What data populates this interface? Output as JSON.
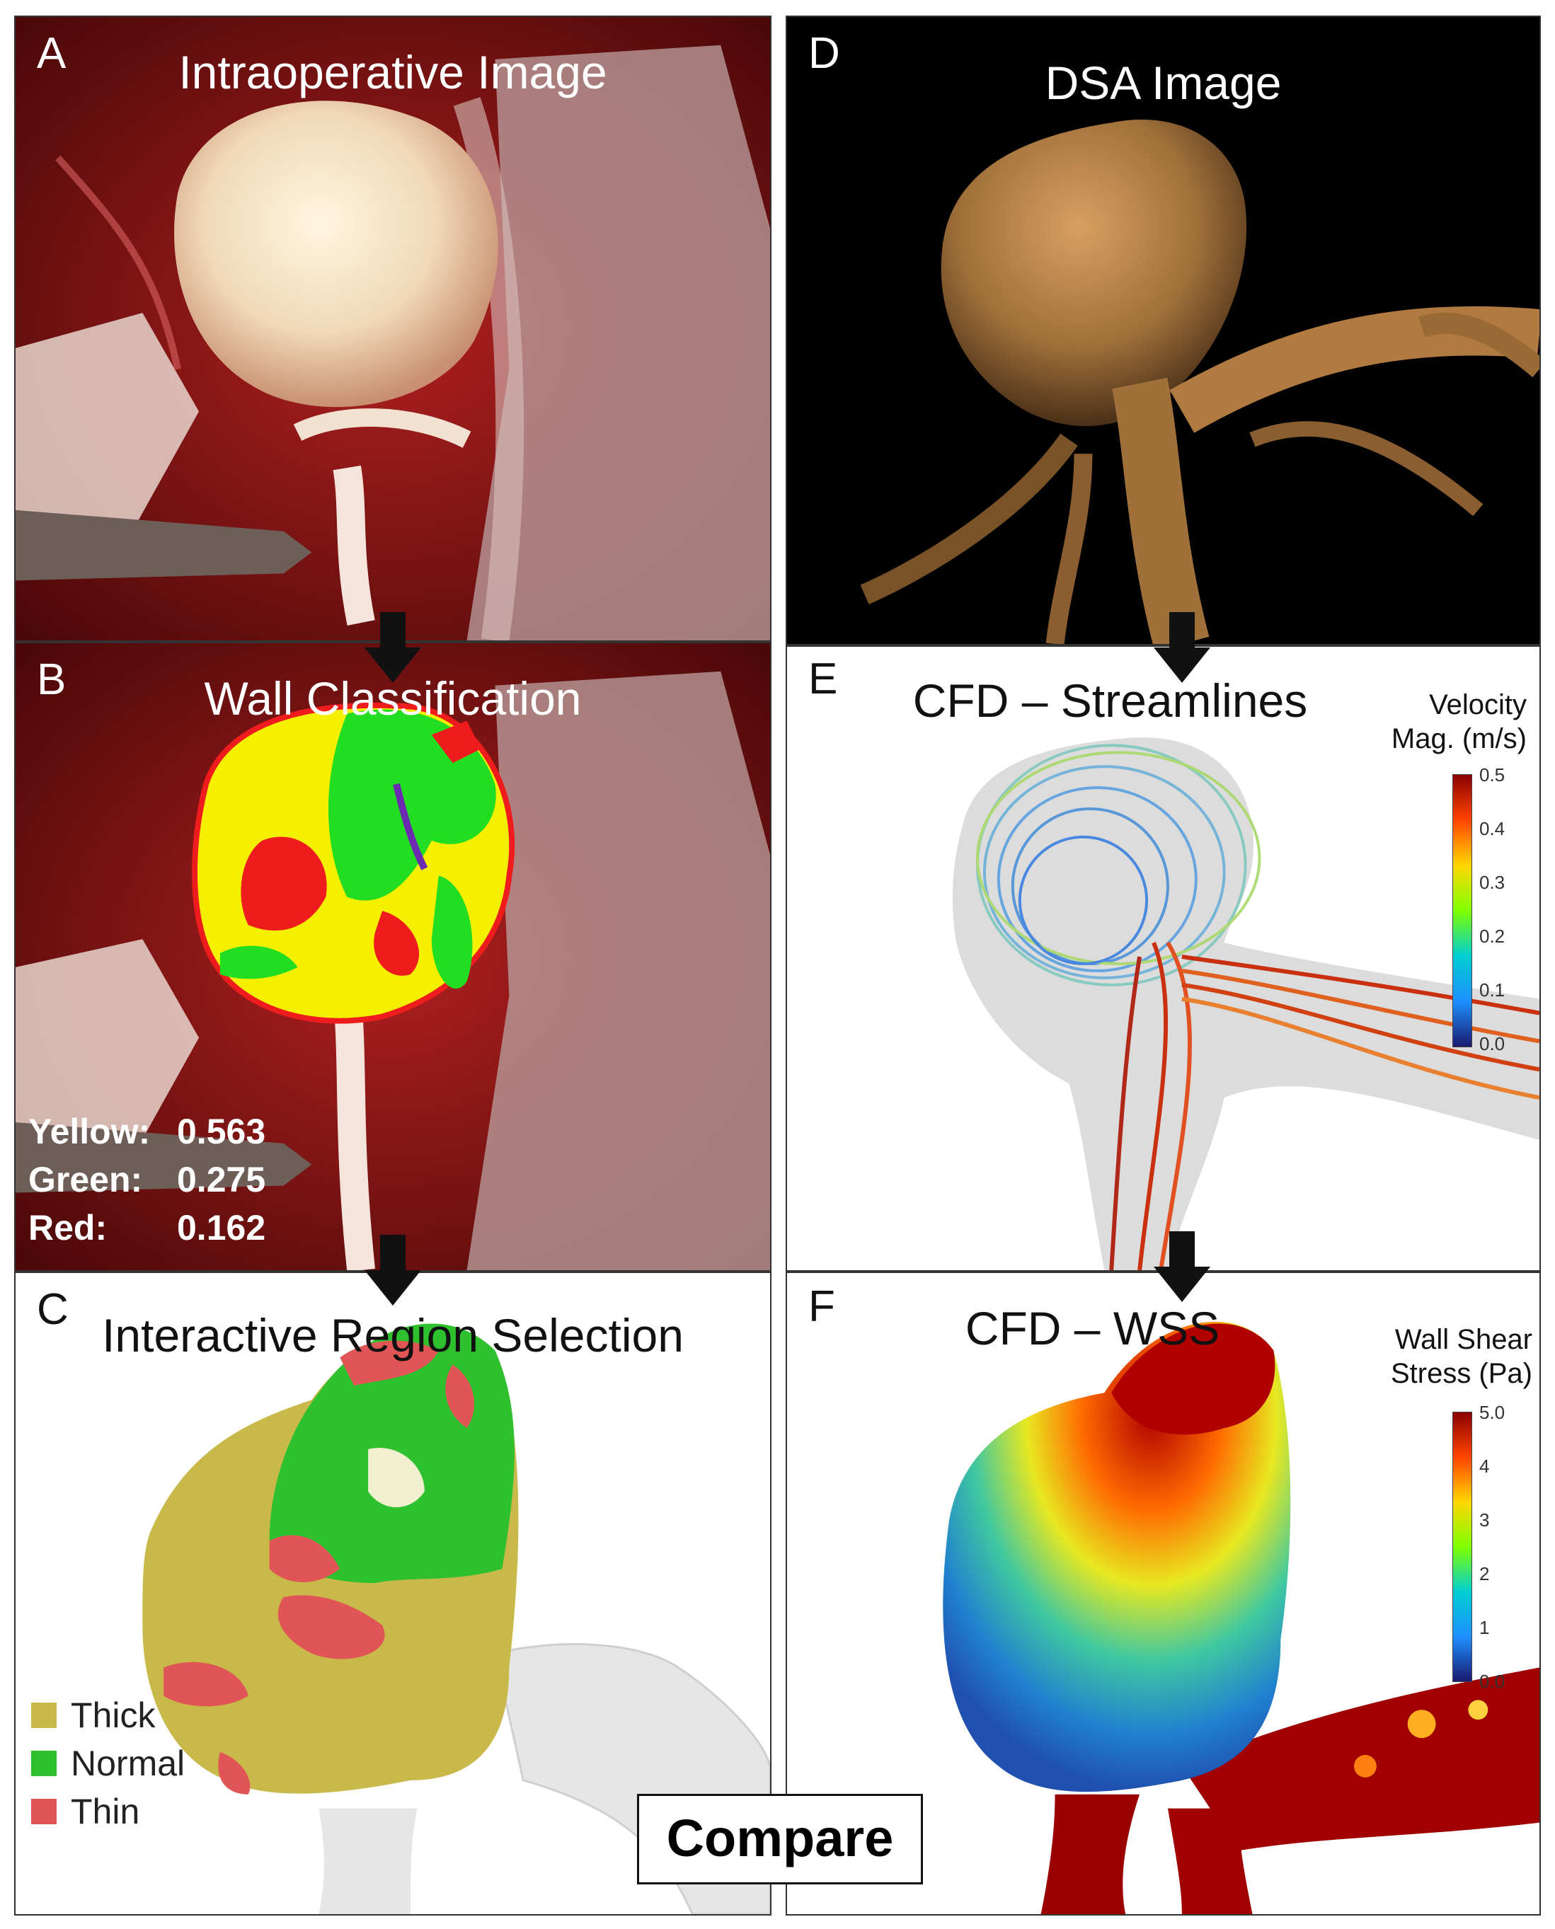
{
  "panels": {
    "A": {
      "letter": "A",
      "title": "Intraoperative Image"
    },
    "B": {
      "letter": "B",
      "title": "Wall Classification",
      "stats": [
        {
          "label": "Yellow:",
          "value": "0.563"
        },
        {
          "label": "Green:",
          "value": "0.275"
        },
        {
          "label": "Red:",
          "value": "0.162"
        }
      ]
    },
    "C": {
      "letter": "C",
      "title": "Interactive Region Selection",
      "legend": [
        {
          "label": "Thick",
          "color": "#c8b94a"
        },
        {
          "label": "Normal",
          "color": "#2fc02f"
        },
        {
          "label": "Thin",
          "color": "#e05555"
        }
      ]
    },
    "D": {
      "letter": "D",
      "title": "DSA Image"
    },
    "E": {
      "letter": "E",
      "title": "CFD – Streamlines",
      "colorbar": {
        "title_line1": "Velocity",
        "title_line2": "Mag. (m/s)",
        "ticks": [
          "0.5",
          "0.4",
          "0.3",
          "0.2",
          "0.1",
          "0.0"
        ]
      }
    },
    "F": {
      "letter": "F",
      "title": "CFD – WSS",
      "colorbar": {
        "title_line1": "Wall Shear",
        "title_line2": "Stress (Pa)",
        "ticks": [
          "5.0",
          "4",
          "3",
          "2",
          "1",
          "0.0"
        ]
      }
    }
  },
  "compare_label": "Compare",
  "colors": {
    "yellow": "#f5f000",
    "green": "#22dd22",
    "red": "#ee1c1c",
    "blood": "#8a1a1a"
  }
}
